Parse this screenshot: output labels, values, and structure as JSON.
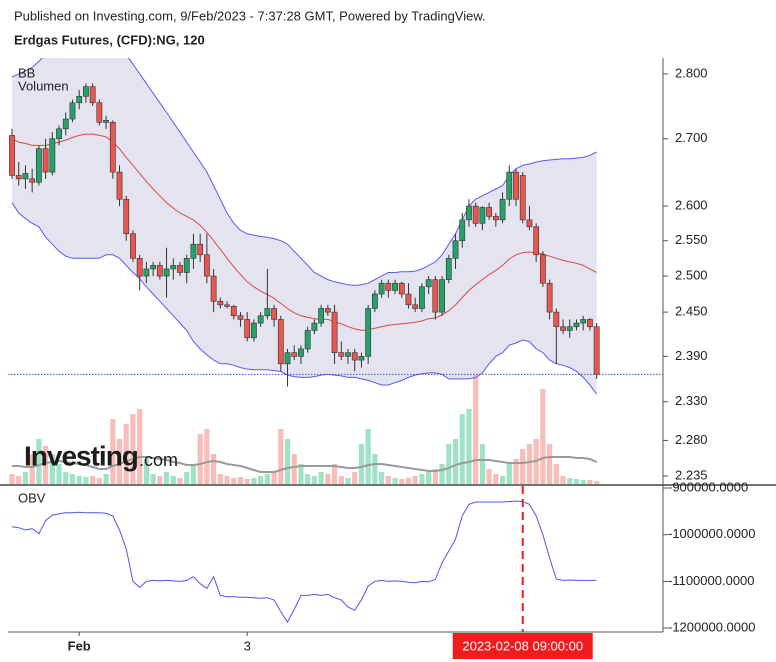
{
  "header": {
    "published": "Published on Investing.com, 9/Feb/2023 - 7:37:28 GMT, Powered by TradingView.",
    "instrument": "Erdgas Futures, (CFD):NG, 120"
  },
  "watermark": {
    "brand": "Investing",
    "suffix": ".com"
  },
  "chart_data": [
    {
      "type": "candlestick",
      "indicator_labels": [
        "BB",
        "Volumen"
      ],
      "categories": [
        null,
        null,
        null,
        null,
        null,
        null,
        null,
        null,
        null,
        null,
        "Feb",
        null,
        null,
        null,
        null,
        null,
        null,
        null,
        null,
        null,
        null,
        null,
        null,
        null,
        null,
        null,
        null,
        null,
        null,
        null,
        null,
        null,
        null,
        null,
        null,
        "3",
        null,
        null,
        null,
        null,
        null,
        null,
        null,
        null,
        null,
        null,
        null,
        null,
        null,
        null,
        null,
        null,
        null,
        null,
        null,
        null,
        null,
        null,
        null,
        null,
        null,
        null,
        null,
        null,
        null,
        null,
        null,
        null,
        null,
        null,
        null,
        null,
        null,
        null,
        null,
        null,
        "2023-02-08 09:00:00",
        null,
        null,
        null,
        null,
        null,
        null,
        null,
        null,
        null,
        null,
        null
      ],
      "open": [
        2.705,
        2.645,
        2.64,
        2.64,
        2.635,
        2.685,
        2.65,
        2.7,
        2.715,
        2.73,
        2.755,
        2.765,
        2.78,
        2.755,
        2.725,
        2.725,
        2.65,
        2.61,
        2.56,
        2.525,
        2.5,
        2.51,
        2.515,
        2.5,
        2.51,
        2.515,
        2.505,
        2.525,
        2.545,
        2.53,
        2.5,
        2.465,
        2.46,
        2.458,
        2.445,
        2.44,
        2.415,
        2.435,
        2.445,
        2.455,
        2.44,
        2.38,
        2.395,
        2.39,
        2.4,
        2.425,
        2.435,
        2.455,
        2.45,
        2.395,
        2.39,
        2.395,
        2.385,
        2.39,
        2.455,
        2.475,
        2.49,
        2.48,
        2.49,
        2.475,
        2.46,
        2.455,
        2.485,
        2.495,
        2.45,
        2.495,
        2.525,
        2.55,
        2.58,
        2.6,
        2.575,
        2.598,
        2.585,
        2.58,
        2.61,
        2.65,
        2.645,
        2.58,
        2.57,
        2.53,
        2.49,
        2.45,
        2.43,
        2.425,
        2.43,
        2.435,
        2.44,
        2.43
      ],
      "high": [
        2.715,
        2.665,
        2.66,
        2.655,
        2.69,
        2.7,
        2.71,
        2.72,
        2.74,
        2.76,
        2.775,
        2.785,
        2.785,
        2.76,
        2.735,
        2.728,
        2.66,
        2.615,
        2.565,
        2.53,
        2.52,
        2.52,
        2.52,
        2.54,
        2.525,
        2.52,
        2.53,
        2.56,
        2.56,
        2.56,
        2.51,
        2.47,
        2.465,
        2.46,
        2.45,
        2.45,
        2.44,
        2.45,
        2.51,
        2.46,
        2.445,
        2.4,
        2.405,
        2.405,
        2.43,
        2.44,
        2.46,
        2.46,
        2.46,
        2.41,
        2.4,
        2.4,
        2.395,
        2.46,
        2.48,
        2.495,
        2.495,
        2.495,
        2.492,
        2.49,
        2.47,
        2.49,
        2.5,
        2.5,
        2.5,
        2.53,
        2.56,
        2.59,
        2.61,
        2.605,
        2.6,
        2.605,
        2.59,
        2.62,
        2.66,
        2.655,
        2.65,
        2.6,
        2.575,
        2.535,
        2.495,
        2.455,
        2.44,
        2.44,
        2.44,
        2.445,
        2.442,
        2.435
      ],
      "low": [
        2.64,
        2.63,
        2.625,
        2.62,
        2.63,
        2.64,
        2.645,
        2.69,
        2.705,
        2.725,
        2.745,
        2.755,
        2.75,
        2.72,
        2.715,
        2.64,
        2.6,
        2.55,
        2.52,
        2.48,
        2.49,
        2.5,
        2.495,
        2.47,
        2.495,
        2.5,
        2.49,
        2.51,
        2.52,
        2.49,
        2.45,
        2.455,
        2.455,
        2.44,
        2.43,
        2.41,
        2.41,
        2.43,
        2.44,
        2.43,
        2.37,
        2.35,
        2.385,
        2.38,
        2.395,
        2.42,
        2.43,
        2.445,
        2.38,
        2.385,
        2.38,
        2.37,
        2.375,
        2.38,
        2.45,
        2.47,
        2.47,
        2.475,
        2.47,
        2.455,
        2.45,
        2.45,
        2.475,
        2.44,
        2.445,
        2.49,
        2.51,
        2.54,
        2.57,
        2.57,
        2.565,
        2.58,
        2.57,
        2.575,
        2.6,
        2.6,
        2.575,
        2.565,
        2.52,
        2.485,
        2.44,
        2.38,
        2.42,
        2.415,
        2.425,
        2.425,
        2.425,
        2.36
      ],
      "close": [
        2.645,
        2.64,
        2.648,
        2.635,
        2.685,
        2.65,
        2.7,
        2.715,
        2.73,
        2.755,
        2.765,
        2.78,
        2.755,
        2.725,
        2.728,
        2.65,
        2.61,
        2.56,
        2.525,
        2.5,
        2.51,
        2.515,
        2.5,
        2.51,
        2.515,
        2.505,
        2.525,
        2.545,
        2.53,
        2.5,
        2.465,
        2.46,
        2.458,
        2.445,
        2.44,
        2.415,
        2.435,
        2.445,
        2.455,
        2.44,
        2.38,
        2.395,
        2.39,
        2.4,
        2.425,
        2.435,
        2.455,
        2.45,
        2.395,
        2.39,
        2.395,
        2.385,
        2.39,
        2.455,
        2.475,
        2.49,
        2.48,
        2.49,
        2.475,
        2.46,
        2.455,
        2.485,
        2.495,
        2.45,
        2.495,
        2.525,
        2.55,
        2.58,
        2.6,
        2.575,
        2.598,
        2.585,
        2.58,
        2.61,
        2.65,
        2.61,
        2.58,
        2.57,
        2.53,
        2.49,
        2.45,
        2.43,
        2.425,
        2.43,
        2.435,
        2.44,
        2.43,
        2.366
      ],
      "up_color": "#26a269",
      "down_color": "#e8564e",
      "outline_color": "#333333",
      "bollinger": {
        "upper": [
          2.795,
          2.8,
          2.805,
          2.81,
          2.82,
          2.83,
          2.845,
          2.86,
          2.87,
          2.88,
          2.885,
          2.89,
          2.89,
          2.885,
          2.875,
          2.86,
          2.845,
          2.83,
          2.815,
          2.8,
          2.785,
          2.77,
          2.755,
          2.74,
          2.725,
          2.71,
          2.695,
          2.68,
          2.665,
          2.65,
          2.63,
          2.61,
          2.59,
          2.575,
          2.565,
          2.56,
          2.558,
          2.556,
          2.555,
          2.553,
          2.55,
          2.545,
          2.535,
          2.525,
          2.515,
          2.505,
          2.5,
          2.495,
          2.492,
          2.49,
          2.488,
          2.487,
          2.488,
          2.49,
          2.495,
          2.5,
          2.505,
          2.505,
          2.506,
          2.506,
          2.507,
          2.51,
          2.515,
          2.52,
          2.53,
          2.545,
          2.56,
          2.58,
          2.6,
          2.61,
          2.615,
          2.62,
          2.625,
          2.63,
          2.645,
          2.655,
          2.66,
          2.662,
          2.665,
          2.667,
          2.668,
          2.669,
          2.67,
          2.67,
          2.671,
          2.672,
          2.675,
          2.68
        ],
        "middle": [
          2.7,
          2.695,
          2.693,
          2.69,
          2.69,
          2.69,
          2.692,
          2.695,
          2.698,
          2.702,
          2.705,
          2.707,
          2.707,
          2.705,
          2.703,
          2.695,
          2.685,
          2.672,
          2.66,
          2.648,
          2.636,
          2.625,
          2.615,
          2.605,
          2.597,
          2.59,
          2.585,
          2.58,
          2.572,
          2.562,
          2.55,
          2.538,
          2.525,
          2.513,
          2.502,
          2.492,
          2.485,
          2.479,
          2.474,
          2.469,
          2.462,
          2.455,
          2.449,
          2.445,
          2.443,
          2.441,
          2.44,
          2.44,
          2.437,
          2.434,
          2.43,
          2.427,
          2.425,
          2.426,
          2.428,
          2.43,
          2.432,
          2.433,
          2.434,
          2.435,
          2.436,
          2.438,
          2.441,
          2.442,
          2.446,
          2.452,
          2.46,
          2.47,
          2.48,
          2.488,
          2.495,
          2.502,
          2.508,
          2.515,
          2.524,
          2.53,
          2.533,
          2.534,
          2.533,
          2.531,
          2.528,
          2.525,
          2.522,
          2.52,
          2.518,
          2.515,
          2.51,
          2.505
        ],
        "lower": [
          2.605,
          2.59,
          2.582,
          2.575,
          2.57,
          2.555,
          2.545,
          2.535,
          2.528,
          2.525,
          2.525,
          2.525,
          2.525,
          2.525,
          2.53,
          2.53,
          2.525,
          2.515,
          2.505,
          2.496,
          2.485,
          2.475,
          2.465,
          2.455,
          2.445,
          2.435,
          2.425,
          2.41,
          2.4,
          2.392,
          2.385,
          2.38,
          2.38,
          2.378,
          2.375,
          2.373,
          2.372,
          2.372,
          2.372,
          2.371,
          2.37,
          2.365,
          2.363,
          2.362,
          2.362,
          2.363,
          2.365,
          2.366,
          2.365,
          2.364,
          2.362,
          2.362,
          2.36,
          2.358,
          2.355,
          2.352,
          2.352,
          2.355,
          2.358,
          2.362,
          2.365,
          2.367,
          2.368,
          2.368,
          2.366,
          2.36,
          2.36,
          2.36,
          2.36,
          2.362,
          2.368,
          2.38,
          2.39,
          2.395,
          2.405,
          2.408,
          2.412,
          2.41,
          2.4,
          2.395,
          2.385,
          2.38,
          2.378,
          2.375,
          2.37,
          2.362,
          2.352,
          2.34
        ],
        "band_color": "#5a5af0",
        "middle_color": "#e0483f",
        "fill": "#e4e4f1"
      },
      "volume": {
        "values": [
          10,
          8,
          12,
          30,
          45,
          38,
          30,
          20,
          12,
          10,
          8,
          7,
          8,
          6,
          10,
          65,
          45,
          60,
          70,
          75,
          25,
          10,
          8,
          12,
          8,
          6,
          12,
          20,
          50,
          55,
          30,
          10,
          8,
          6,
          7,
          5,
          6,
          8,
          10,
          12,
          55,
          45,
          30,
          20,
          10,
          8,
          12,
          10,
          20,
          8,
          6,
          12,
          40,
          55,
          30,
          12,
          8,
          6,
          5,
          6,
          8,
          10,
          12,
          15,
          20,
          40,
          45,
          70,
          75,
          110,
          40,
          15,
          10,
          8,
          20,
          25,
          35,
          40,
          45,
          95,
          40,
          20,
          8,
          6,
          5,
          4,
          4,
          3
        ],
        "ma": [
          18,
          18,
          17,
          17,
          19,
          21,
          22,
          23,
          22,
          21,
          20,
          19,
          17,
          15,
          15,
          18,
          20,
          23,
          25,
          27,
          27,
          26,
          25,
          24,
          22,
          21,
          19,
          19,
          20,
          22,
          23,
          22,
          20,
          19,
          18,
          16,
          14,
          12,
          12,
          12,
          14,
          16,
          17,
          18,
          18,
          18,
          18,
          18,
          18,
          17,
          16,
          16,
          17,
          19,
          20,
          20,
          19,
          18,
          17,
          16,
          15,
          14,
          13,
          13,
          14,
          16,
          19,
          21,
          22,
          24,
          24,
          24,
          23,
          22,
          21,
          21,
          21,
          22,
          23,
          26,
          27,
          27,
          27,
          27,
          26,
          26,
          25,
          22
        ],
        "up_color": "#9fe3c6",
        "down_color": "#f8bdb8",
        "ma_color": "#9a9a9a"
      },
      "ylim": [
        2.225,
        2.825
      ],
      "log_scale": true,
      "grid": false,
      "last_price_line": true,
      "last_price_color": "#3a4fd0",
      "crosshair_color": "#ee1c1c",
      "yticks": [
        {
          "value": 2.8,
          "label": "2.800"
        },
        {
          "value": 2.7,
          "label": "2.700"
        },
        {
          "value": 2.6,
          "label": "2.600"
        },
        {
          "value": 2.55,
          "label": "2.550"
        },
        {
          "value": 2.5,
          "label": "2.500"
        },
        {
          "value": 2.45,
          "label": "2.450"
        },
        {
          "value": 2.39,
          "label": "2.390"
        },
        {
          "value": 2.33,
          "label": "2.330"
        },
        {
          "value": 2.28,
          "label": "2.280"
        },
        {
          "value": 2.235,
          "label": "2.235"
        }
      ]
    },
    {
      "type": "line",
      "title": "OBV",
      "color": "#5555ee",
      "values": [
        -983000,
        -985000,
        -990000,
        -987000,
        -998000,
        -970000,
        -958000,
        -955000,
        -953000,
        -953000,
        -952000,
        -953000,
        -953000,
        -953000,
        -954000,
        -960000,
        -990000,
        -1030000,
        -1100000,
        -1113000,
        -1100000,
        -1098000,
        -1099000,
        -1098000,
        -1099000,
        -1100000,
        -1098000,
        -1090000,
        -1105000,
        -1115000,
        -1090000,
        -1130000,
        -1133000,
        -1133000,
        -1134000,
        -1134000,
        -1135000,
        -1136000,
        -1135000,
        -1140000,
        -1165000,
        -1187000,
        -1160000,
        -1130000,
        -1130000,
        -1128000,
        -1130000,
        -1128000,
        -1135000,
        -1140000,
        -1155000,
        -1162000,
        -1140000,
        -1110000,
        -1100000,
        -1098000,
        -1100000,
        -1099000,
        -1100000,
        -1102000,
        -1103000,
        -1100000,
        -1101000,
        -1096000,
        -1060000,
        -1035000,
        -1010000,
        -960000,
        -935000,
        -930000,
        -930000,
        -930000,
        -930000,
        -930000,
        -929000,
        -928000,
        -929000,
        -935000,
        -960000,
        -1000000,
        -1050000,
        -1095000,
        -1098000,
        -1097000,
        -1098000,
        -1098000,
        -1098000,
        -1098000
      ],
      "ylim": [
        -1208500,
        -895700
      ],
      "yticks": [
        {
          "value": -900000,
          "label": "-900000.0000"
        },
        {
          "value": -1000000,
          "label": "-1000000.0000"
        },
        {
          "value": -1100000,
          "label": "-1100000.0000"
        },
        {
          "value": -1200000,
          "label": "-1200000.0000"
        }
      ]
    }
  ]
}
